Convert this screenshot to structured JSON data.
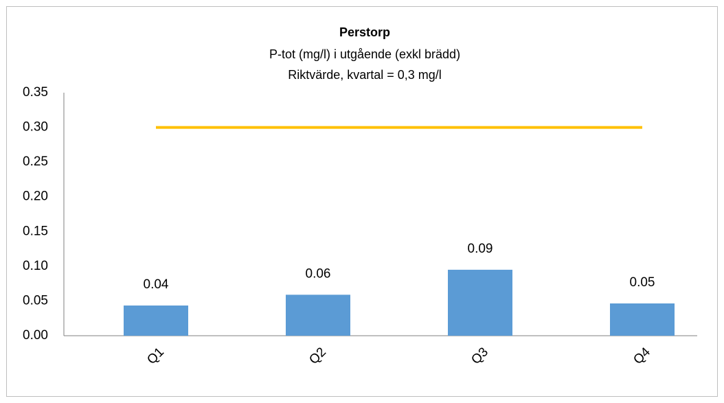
{
  "chart_data": {
    "type": "bar",
    "title": "Perstorp",
    "subtitle": [
      "P-tot (mg/l) i utgående (exkl brädd)",
      "Riktvärde, kvartal = 0,3 mg/l"
    ],
    "categories": [
      "Q1",
      "Q2",
      "Q3",
      "Q4"
    ],
    "series": [
      {
        "type": "bar",
        "color": "#5b9bd5",
        "values": [
          0.0435,
          0.059,
          0.095,
          0.0465
        ],
        "value_labels": [
          "0.04",
          "0.06",
          "0.09",
          "0.05"
        ]
      },
      {
        "type": "line",
        "color": "#ffc000",
        "values": [
          0.3,
          0.3,
          0.3,
          0.3
        ]
      }
    ],
    "ylim": [
      0,
      0.35
    ],
    "yticks": [
      {
        "value": 0,
        "label": "0.00"
      },
      {
        "value": 0.05,
        "label": "0.05"
      },
      {
        "value": 0.1,
        "label": "0.10"
      },
      {
        "value": 0.15,
        "label": "0.15"
      },
      {
        "value": 0.2,
        "label": "0.20"
      },
      {
        "value": 0.25,
        "label": "0.25"
      },
      {
        "value": 0.3,
        "label": "0.30"
      },
      {
        "value": 0.35,
        "label": "0.35"
      }
    ],
    "grid": false
  }
}
